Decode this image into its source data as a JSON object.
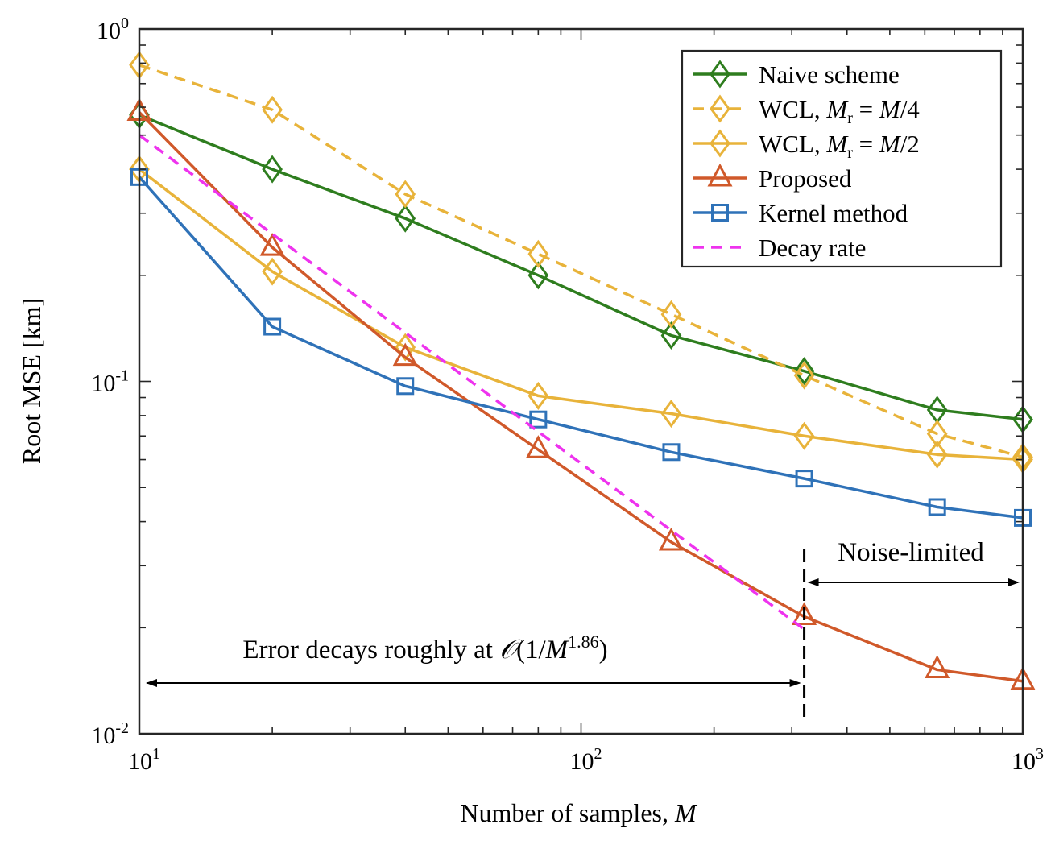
{
  "chart_data": {
    "type": "line",
    "x_scale": "log",
    "y_scale": "log",
    "xlim": [
      10,
      1000
    ],
    "ylim": [
      0.01,
      1
    ],
    "xlabel": "Number of samples, ",
    "xlabel_var": "M",
    "ylabel": "Root MSE [km]",
    "x_ticks": [
      {
        "value": 10,
        "base": "10",
        "exp": "1"
      },
      {
        "value": 100,
        "base": "10",
        "exp": "2"
      },
      {
        "value": 1000,
        "base": "10",
        "exp": "3"
      }
    ],
    "y_ticks": [
      {
        "value": 0.01,
        "base": "10",
        "exp": "-2"
      },
      {
        "value": 0.1,
        "base": "10",
        "exp": "-1"
      },
      {
        "value": 1,
        "base": "10",
        "exp": "0"
      }
    ],
    "legend_position": "top-right",
    "series": [
      {
        "name": "Naive scheme",
        "legend_parts": [
          {
            "t": "Naive scheme",
            "i": false
          }
        ],
        "color": "#2e7d1e",
        "dash": "solid",
        "marker": "diamond",
        "x": [
          10,
          20,
          40,
          80,
          160,
          320,
          640,
          1000
        ],
        "y": [
          0.57,
          0.4,
          0.29,
          0.2,
          0.135,
          0.107,
          0.083,
          0.078
        ]
      },
      {
        "name": "WCL, Mr = M/4",
        "legend_parts": [
          {
            "t": "WCL, ",
            "i": false
          },
          {
            "t": "M",
            "i": true
          },
          {
            "t": "r",
            "sub": true
          },
          {
            "t": " = ",
            "i": false
          },
          {
            "t": "M",
            "i": true
          },
          {
            "t": "/4",
            "i": false
          }
        ],
        "color": "#e8b33a",
        "dash": "dashed",
        "marker": "diamond",
        "x": [
          10,
          20,
          40,
          80,
          160,
          320,
          640,
          1000
        ],
        "y": [
          0.79,
          0.59,
          0.34,
          0.23,
          0.155,
          0.104,
          0.071,
          0.061
        ]
      },
      {
        "name": "WCL, Mr = M/2",
        "legend_parts": [
          {
            "t": "WCL, ",
            "i": false
          },
          {
            "t": "M",
            "i": true
          },
          {
            "t": "r",
            "sub": true
          },
          {
            "t": " = ",
            "i": false
          },
          {
            "t": "M",
            "i": true
          },
          {
            "t": "/2",
            "i": false
          }
        ],
        "color": "#e8b33a",
        "dash": "solid",
        "marker": "diamond",
        "x": [
          10,
          20,
          40,
          80,
          160,
          320,
          640,
          1000
        ],
        "y": [
          0.4,
          0.205,
          0.125,
          0.091,
          0.081,
          0.07,
          0.062,
          0.06
        ]
      },
      {
        "name": "Proposed",
        "legend_parts": [
          {
            "t": "Proposed",
            "i": false
          }
        ],
        "color": "#d0592a",
        "dash": "solid",
        "marker": "triangle",
        "x": [
          10,
          20,
          40,
          80,
          160,
          320,
          640,
          1000
        ],
        "y": [
          0.58,
          0.24,
          0.117,
          0.064,
          0.035,
          0.0215,
          0.0152,
          0.0141
        ]
      },
      {
        "name": "Kernel method",
        "legend_parts": [
          {
            "t": "Kernel method",
            "i": false
          }
        ],
        "color": "#2f72b8",
        "dash": "solid",
        "marker": "square",
        "x": [
          10,
          20,
          40,
          80,
          160,
          320,
          640,
          1000
        ],
        "y": [
          0.38,
          0.143,
          0.097,
          0.078,
          0.063,
          0.053,
          0.044,
          0.041
        ]
      },
      {
        "name": "Decay rate",
        "legend_parts": [
          {
            "t": "Decay rate",
            "i": false
          }
        ],
        "color": "#ee33ee",
        "dash": "dashed",
        "marker": "none",
        "x": [
          10,
          320
        ],
        "y": [
          0.5,
          0.0198
        ]
      }
    ],
    "annotations": {
      "vline_x": 320,
      "noise_limited": {
        "label": "Noise-limited",
        "x_from": 320,
        "x_to": 1000
      },
      "error_decay": {
        "text": "Error decays roughly at ",
        "math_O": "𝒪",
        "math_open": "(1/",
        "math_var": "M",
        "math_exp": "1.86",
        "math_close": ")",
        "x_from": 10,
        "x_to": 320
      }
    }
  }
}
